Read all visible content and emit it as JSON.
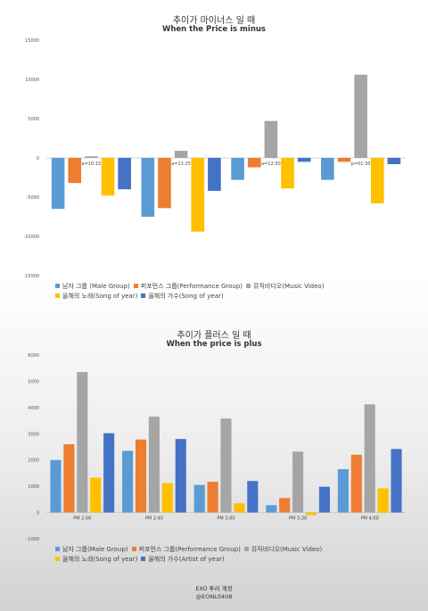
{
  "colors": {
    "male": "#5b9bd5",
    "performance": "#ed7d31",
    "music_video": "#a5a5a5",
    "song": "#ffc000",
    "artist": "#4472c4"
  },
  "chart_data": [
    {
      "type": "bar",
      "title": "추이가 마이너스 일 때",
      "subtitle": "When the Price is minus",
      "ylim": [
        -15000,
        15000
      ],
      "yticks": [
        15000,
        10000,
        5000,
        0,
        -5000,
        -10000,
        -15000
      ],
      "grid": false,
      "legend": "bottom",
      "categories": [
        "a=10:15",
        "a=11:25",
        "a=12:00",
        "p=01:30"
      ],
      "series": [
        {
          "name": "남자 그룹 (Male Group)",
          "color_key": "male",
          "values": [
            -6500,
            -7500,
            -2800,
            -2800
          ]
        },
        {
          "name": "퍼포먼스 그룹(Performance Group)",
          "color_key": "performance",
          "values": [
            -3200,
            -6400,
            -1200,
            -500
          ]
        },
        {
          "name": "뮤직비디오(Music Video)",
          "color_key": "music_video",
          "values": [
            200,
            900,
            4700,
            10600
          ]
        },
        {
          "name": "올해의 노래(Song of year)",
          "color_key": "song",
          "values": [
            -4800,
            -9400,
            -3900,
            -5800
          ]
        },
        {
          "name": "올해의 가수(Song of year)",
          "color_key": "artist",
          "values": [
            -4000,
            -4200,
            -500,
            -800
          ]
        }
      ]
    },
    {
      "type": "bar",
      "title": "추이가 플러스 일 때",
      "subtitle": "When the price is plus",
      "ylim": [
        -1000,
        6000
      ],
      "yticks": [
        6000,
        5000,
        4000,
        3000,
        2000,
        1000,
        0,
        -1000
      ],
      "grid": false,
      "legend": "bottom",
      "categories": [
        "PM 2:00",
        "PM 2:40",
        "PM 3:00",
        "PM 3:30",
        "PM 4:00"
      ],
      "series": [
        {
          "name": "남자 그룹(Male Group)",
          "color_key": "male",
          "values": [
            2000,
            2350,
            1050,
            280,
            1650
          ]
        },
        {
          "name": "퍼포먼스 그룹(Performance Group)",
          "color_key": "performance",
          "values": [
            2600,
            2780,
            1170,
            550,
            2200
          ]
        },
        {
          "name": "뮤직비디오(Music Video)",
          "color_key": "music_video",
          "values": [
            5350,
            3650,
            3580,
            2320,
            4120
          ]
        },
        {
          "name": "올해의 노래(Song of year)",
          "color_key": "song",
          "values": [
            1330,
            1120,
            350,
            -100,
            920
          ]
        },
        {
          "name": "올해의 가수(Artist of year)",
          "color_key": "artist",
          "values": [
            3020,
            2800,
            1200,
            980,
            2420
          ]
        }
      ]
    }
  ],
  "footer": {
    "line1": "EXO 투러 계정",
    "line2": "@EONL0408"
  }
}
